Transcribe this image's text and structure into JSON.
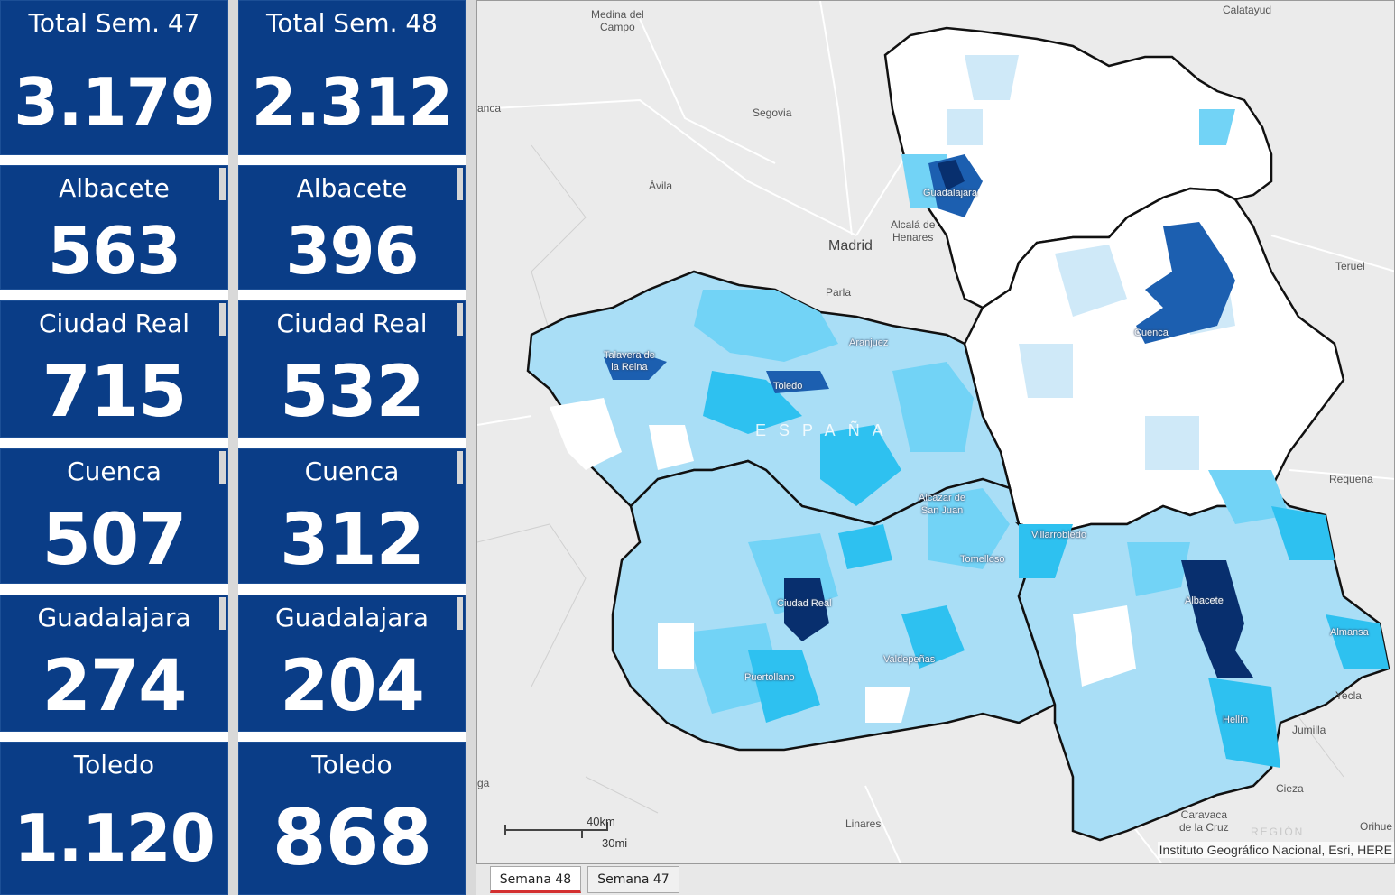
{
  "cards_left": [
    {
      "title": "Total Sem. 47",
      "value": "3.179"
    },
    {
      "title": "Albacete",
      "value": "563"
    },
    {
      "title": "Ciudad Real",
      "value": "715"
    },
    {
      "title": "Cuenca",
      "value": "507"
    },
    {
      "title": "Guadalajara",
      "value": "274"
    },
    {
      "title": "Toledo",
      "value": "1.120"
    }
  ],
  "cards_right": [
    {
      "title": "Total Sem. 48",
      "value": "2.312"
    },
    {
      "title": "Albacete",
      "value": "396"
    },
    {
      "title": "Ciudad Real",
      "value": "532"
    },
    {
      "title": "Cuenca",
      "value": "312"
    },
    {
      "title": "Guadalajara",
      "value": "204"
    },
    {
      "title": "Toledo",
      "value": "868"
    }
  ],
  "colors": {
    "card_bg": "#0a3d87",
    "very_high": "#082f6e",
    "high": "#1c5fb0",
    "medium": "#2ec1f0",
    "medium_light": "#72d3f6",
    "light": "#a9def6",
    "very_light": "#cfe9f8",
    "none": "#ffffff",
    "tab_active_underline": "#d32f2f"
  },
  "map": {
    "places": {
      "medina": "Medina del\nCampo",
      "calatayud": "Calatayud",
      "segovia": "Segovia",
      "avila": "Ávila",
      "salamanca": "anca",
      "guadalajara": "Guadalajara",
      "alcala": "Alcalá de\nHenares",
      "madrid": "Madrid",
      "parla": "Parla",
      "teruel": "Teruel",
      "cuenca": "Cuenca",
      "aranjuez": "Aranjuez",
      "talavera": "Talavera de\nla Reina",
      "toledo": "Toledo",
      "espana": "ESPAÑA",
      "alcazar": "Alcázar de\nSan Juan",
      "requena": "Requena",
      "villarrobledo": "Villarrobledo",
      "tomelloso": "Tomelloso",
      "ciudadreal": "Ciudad Real",
      "albacete": "Albacete",
      "almansa": "Almansa",
      "valdepenas": "Valdepeñas",
      "puertollano": "Puertollano",
      "yecla": "Yecla",
      "hellin": "Hellín",
      "jumilla": "Jumilla",
      "cieza": "Cieza",
      "caravaca": "Caravaca\nde la Cruz",
      "region": "REGIÓN",
      "orihuela": "Orihue",
      "linares": "Linares",
      "ga": "ga"
    },
    "scale_km": "40km",
    "scale_mi": "30mi",
    "attribution": "Instituto Geográfico Nacional, Esri, HERE"
  },
  "tabs": [
    {
      "label": "Semana 48",
      "active": true
    },
    {
      "label": "Semana 47",
      "active": false
    }
  ]
}
